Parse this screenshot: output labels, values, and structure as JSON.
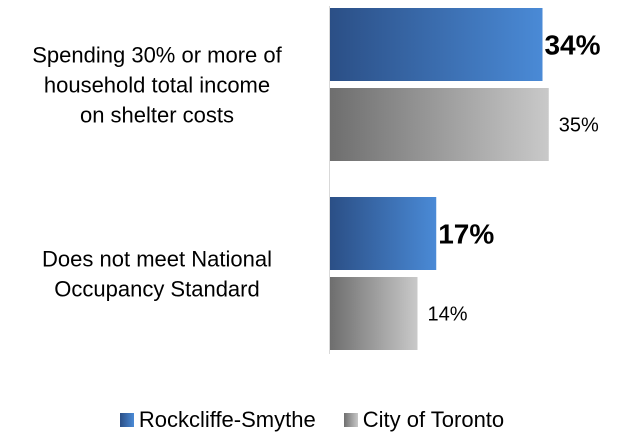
{
  "chart_data": {
    "type": "bar",
    "orientation": "horizontal",
    "categories": [
      "Spending 30% or more of household total income on shelter costs",
      "Does not meet National Occupancy Standard"
    ],
    "category_lines": [
      [
        "Spending 30% or more of",
        "household total income",
        "on shelter costs"
      ],
      [
        "Does not meet National",
        "Occupancy Standard"
      ]
    ],
    "series": [
      {
        "name": "Rockcliffe-Smythe",
        "values": [
          34,
          17
        ],
        "labels": [
          "34%",
          "17%"
        ],
        "color": "#3f78c4"
      },
      {
        "name": "City of Toronto",
        "values": [
          35,
          14
        ],
        "labels": [
          "35%",
          "14%"
        ],
        "color": "#9a9a9a"
      }
    ],
    "legend_position": "bottom",
    "grid": false
  }
}
